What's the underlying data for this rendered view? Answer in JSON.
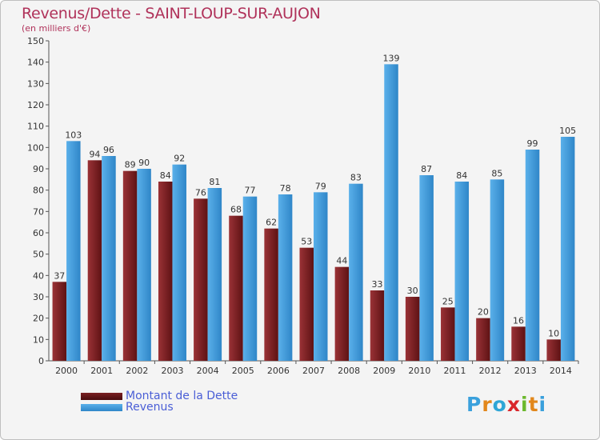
{
  "header": {
    "title": "Revenus/Dette - SAINT-LOUP-SUR-AUJON",
    "subtitle": "(en milliers d'€)"
  },
  "colors": {
    "dette": "#7a1f22",
    "revenus": "#3d9ee0"
  },
  "chart_data": {
    "type": "bar",
    "title": "Revenus/Dette - SAINT-LOUP-SUR-AUJON",
    "subtitle": "(en milliers d'€)",
    "ylim": [
      0,
      150
    ],
    "yticks": [
      0,
      10,
      20,
      30,
      40,
      50,
      60,
      70,
      80,
      90,
      100,
      110,
      120,
      130,
      140,
      150
    ],
    "grid": false,
    "legend_position": "bottom-left",
    "categories": [
      "2000",
      "2001",
      "2002",
      "2003",
      "2004",
      "2005",
      "2006",
      "2007",
      "2008",
      "2009",
      "2010",
      "2011",
      "2012",
      "2013",
      "2014"
    ],
    "series": [
      {
        "name": "Montant de la Dette",
        "values": [
          37,
          94,
          89,
          84,
          76,
          68,
          62,
          53,
          44,
          33,
          30,
          25,
          20,
          16,
          10
        ]
      },
      {
        "name": "Revenus",
        "values": [
          103,
          96,
          90,
          92,
          81,
          77,
          78,
          79,
          83,
          139,
          87,
          84,
          85,
          99,
          105
        ]
      }
    ]
  },
  "legend": {
    "items": [
      "Montant de la Dette",
      "Revenus"
    ]
  },
  "logo": {
    "letters": [
      "P",
      "r",
      "o",
      "x",
      "i",
      "t",
      "i"
    ],
    "colors": [
      "#3aa0dc",
      "#e2871b",
      "#2fa6d6",
      "#d9262b",
      "#6bb82d",
      "#e2871b",
      "#3aa0dc"
    ]
  }
}
